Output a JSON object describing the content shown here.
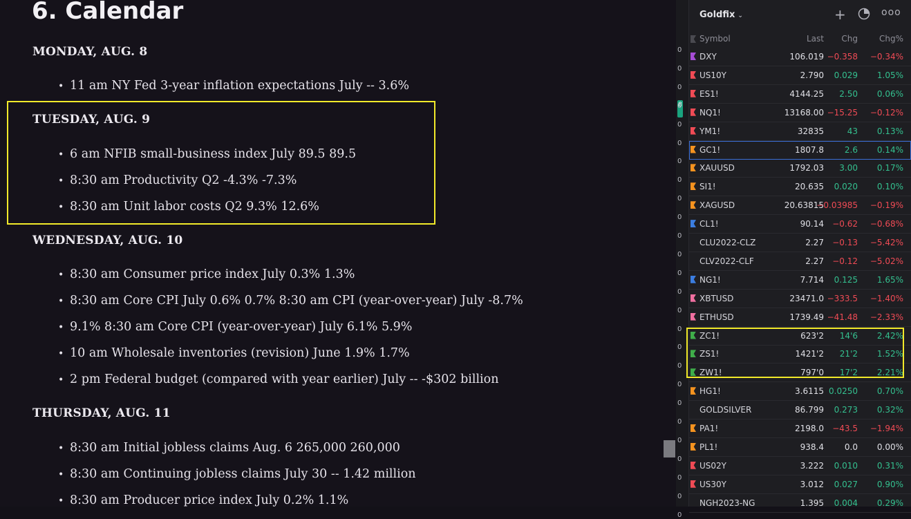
{
  "doc": {
    "title": "6. Calendar",
    "days": [
      {
        "label": "MONDAY, AUG. 8",
        "items": [
          "11 am NY Fed 3-year inflation expectations July -- 3.6%"
        ]
      },
      {
        "label": "TUESDAY, AUG. 9",
        "items": [
          "6 am NFIB small-business index July 89.5 89.5",
          "8:30 am Productivity Q2 -4.3% -7.3%",
          "8:30 am Unit labor costs Q2 9.3% 12.6%"
        ]
      },
      {
        "label": "WEDNESDAY, AUG. 10",
        "items": [
          "8:30 am Consumer price index July 0.3% 1.3%",
          "8:30 am Core CPI July 0.6% 0.7% 8:30 am CPI (year-over-year) July -8.7%",
          "9.1% 8:30 am Core CPI (year-over-year) July 6.1% 5.9%",
          "10 am Wholesale inventories (revision) June 1.9% 1.7%",
          "2 pm Federal budget (compared with year earlier) July -- -$302 billion"
        ]
      },
      {
        "label": "THURSDAY, AUG. 11",
        "items": [
          "8:30 am Initial jobless claims Aug. 6 265,000 260,000",
          "8:30 am Continuing jobless claims July 30 -- 1.42 million",
          "8:30 am Producer price index July 0.2% 1.1%"
        ]
      }
    ]
  },
  "strip": {
    "tab_label": "8",
    "nums": [
      "0",
      "0",
      "0",
      "0",
      "0",
      "0",
      "0",
      "0",
      "0",
      "0",
      "0",
      "0",
      "0",
      "0",
      "0",
      "0",
      "0",
      "0",
      "0",
      "0",
      "0",
      "0",
      "0",
      "0",
      "0",
      "0"
    ]
  },
  "panel": {
    "title": "Goldfix",
    "icons": {
      "add": "plus-icon",
      "chart": "pie-chart-icon",
      "more": "more-icon"
    },
    "columns": {
      "symbol": "Symbol",
      "last": "Last",
      "chg": "Chg",
      "pct": "Chg%"
    },
    "colors": {
      "up": "#34c08f",
      "down": "#f04b55",
      "highlight": "#f2ea2a"
    },
    "rows": [
      {
        "sym": "DXY",
        "last": "106.019",
        "chg": "−0.358",
        "pct": "−0.34%",
        "dir": "down",
        "flag": "#a64dd6"
      },
      {
        "sym": "US10Y",
        "last": "2.790",
        "chg": "0.029",
        "pct": "1.05%",
        "dir": "up",
        "flag": "#f04b55"
      },
      {
        "sym": "ES1!",
        "last": "4144.25",
        "chg": "2.50",
        "pct": "0.06%",
        "dir": "up",
        "flag": "#f04b55"
      },
      {
        "sym": "NQ1!",
        "last": "13168.00",
        "chg": "−15.25",
        "pct": "−0.12%",
        "dir": "down",
        "flag": "#f04b55"
      },
      {
        "sym": "YM1!",
        "last": "32835",
        "chg": "43",
        "pct": "0.13%",
        "dir": "up",
        "flag": "#f04b55"
      },
      {
        "sym": "GC1!",
        "last": "1807.8",
        "chg": "2.6",
        "pct": "0.14%",
        "dir": "up",
        "flag": "#f5931f",
        "selected": true
      },
      {
        "sym": "XAUUSD",
        "last": "1792.03",
        "chg": "3.00",
        "pct": "0.17%",
        "dir": "up",
        "flag": "#f5931f"
      },
      {
        "sym": "SI1!",
        "last": "20.635",
        "chg": "0.020",
        "pct": "0.10%",
        "dir": "up",
        "flag": "#f5931f"
      },
      {
        "sym": "XAGUSD",
        "last": "20.63815",
        "chg": "−0.03985",
        "pct": "−0.19%",
        "dir": "down",
        "flag": "#f5931f"
      },
      {
        "sym": "CL1!",
        "last": "90.14",
        "chg": "−0.62",
        "pct": "−0.68%",
        "dir": "down",
        "flag": "#3b7de0"
      },
      {
        "sym": "CLU2022-CLZ",
        "last": "2.27",
        "chg": "−0.13",
        "pct": "−5.42%",
        "dir": "down",
        "flag": ""
      },
      {
        "sym": "CLV2022-CLF",
        "last": "2.27",
        "chg": "−0.12",
        "pct": "−5.02%",
        "dir": "down",
        "flag": ""
      },
      {
        "sym": "NG1!",
        "last": "7.714",
        "chg": "0.125",
        "pct": "1.65%",
        "dir": "up",
        "flag": "#3b7de0"
      },
      {
        "sym": "XBTUSD",
        "last": "23471.0",
        "chg": "−333.5",
        "pct": "−1.40%",
        "dir": "down",
        "flag": "#f06fa0"
      },
      {
        "sym": "ETHUSD",
        "last": "1739.49",
        "chg": "−41.48",
        "pct": "−2.33%",
        "dir": "down",
        "flag": "#f06fa0"
      },
      {
        "sym": "ZC1!",
        "last": "623'2",
        "chg": "14'6",
        "pct": "2.42%",
        "dir": "up",
        "flag": "#3fae4a"
      },
      {
        "sym": "ZS1!",
        "last": "1421'2",
        "chg": "21'2",
        "pct": "1.52%",
        "dir": "up",
        "flag": "#3fae4a"
      },
      {
        "sym": "ZW1!",
        "last": "797'0",
        "chg": "17'2",
        "pct": "2.21%",
        "dir": "up",
        "flag": "#3fae4a"
      },
      {
        "sym": "HG1!",
        "last": "3.6115",
        "chg": "0.0250",
        "pct": "0.70%",
        "dir": "up",
        "flag": "#f5931f"
      },
      {
        "sym": "GOLDSILVER",
        "last": "86.799",
        "chg": "0.273",
        "pct": "0.32%",
        "dir": "up",
        "flag": ""
      },
      {
        "sym": "PA1!",
        "last": "2198.0",
        "chg": "−43.5",
        "pct": "−1.94%",
        "dir": "down",
        "flag": "#f5931f"
      },
      {
        "sym": "PL1!",
        "last": "938.4",
        "chg": "0.0",
        "pct": "0.00%",
        "dir": "down",
        "flag": "#f5931f"
      },
      {
        "sym": "US02Y",
        "last": "3.222",
        "chg": "0.010",
        "pct": "0.31%",
        "dir": "up",
        "flag": "#f04b55"
      },
      {
        "sym": "US30Y",
        "last": "3.012",
        "chg": "0.027",
        "pct": "0.90%",
        "dir": "up",
        "flag": "#f04b55"
      },
      {
        "sym": "NGH2023-NG",
        "last": "1.395",
        "chg": "0.004",
        "pct": "0.29%",
        "dir": "up",
        "flag": ""
      }
    ]
  }
}
